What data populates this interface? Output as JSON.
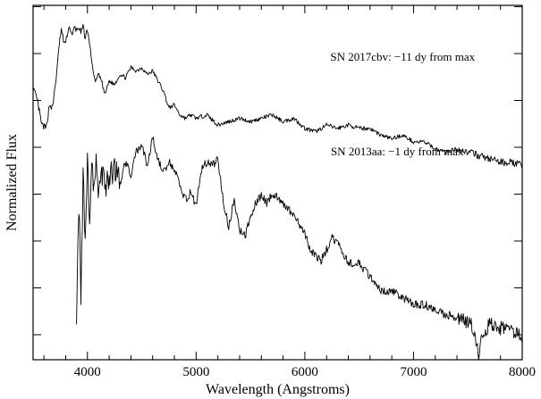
{
  "chart_data": {
    "type": "line",
    "title": "",
    "xlabel": "Wavelength (Angstroms)",
    "ylabel": "Normalized Flux",
    "xlim": [
      3500,
      8000
    ],
    "ylim": [
      0,
      1
    ],
    "x_ticks": [
      4000,
      5000,
      6000,
      7000,
      8000
    ],
    "x_tick_labels": [
      "4000",
      "5000",
      "6000",
      "7000",
      "8000"
    ],
    "y_ticks_unlabeled": true,
    "grid": false,
    "legend": "none",
    "line_color": "#000000",
    "annotations": [
      {
        "text": "SN 2017cbv: −11 dy from max",
        "x": 6900,
        "y": 0.86
      },
      {
        "text": "SN 2013aa: −1 dy from max",
        "x": 6850,
        "y": 0.58
      }
    ],
    "series": [
      {
        "name": "SN 2017cbv: −11 dy from max",
        "x": [
          3500,
          3540,
          3580,
          3620,
          3650,
          3680,
          3700,
          3720,
          3740,
          3760,
          3780,
          3800,
          3820,
          3840,
          3860,
          3880,
          3900,
          3920,
          3940,
          3960,
          3980,
          4000,
          4020,
          4040,
          4060,
          4080,
          4100,
          4130,
          4160,
          4200,
          4250,
          4300,
          4350,
          4400,
          4450,
          4500,
          4550,
          4600,
          4650,
          4700,
          4750,
          4800,
          4850,
          4900,
          4950,
          5000,
          5100,
          5200,
          5300,
          5400,
          5500,
          5600,
          5700,
          5800,
          5900,
          6000,
          6100,
          6200,
          6300,
          6400,
          6500,
          6600,
          6700,
          6800,
          6900,
          7000,
          7100,
          7200,
          7300,
          7400,
          7500,
          7600,
          7700,
          7800,
          7900,
          8000
        ],
        "y": [
          0.78,
          0.74,
          0.67,
          0.66,
          0.73,
          0.72,
          0.78,
          0.83,
          0.91,
          0.95,
          0.92,
          0.91,
          0.95,
          0.96,
          0.93,
          0.96,
          0.95,
          0.96,
          0.94,
          0.96,
          0.93,
          0.95,
          0.91,
          0.86,
          0.81,
          0.8,
          0.82,
          0.8,
          0.76,
          0.8,
          0.79,
          0.82,
          0.81,
          0.84,
          0.83,
          0.84,
          0.82,
          0.83,
          0.8,
          0.77,
          0.72,
          0.73,
          0.7,
          0.69,
          0.7,
          0.69,
          0.7,
          0.67,
          0.68,
          0.69,
          0.68,
          0.69,
          0.7,
          0.68,
          0.69,
          0.66,
          0.65,
          0.67,
          0.66,
          0.67,
          0.66,
          0.66,
          0.64,
          0.63,
          0.64,
          0.62,
          0.62,
          0.6,
          0.59,
          0.6,
          0.59,
          0.58,
          0.57,
          0.56,
          0.56,
          0.55
        ]
      },
      {
        "name": "SN 2013aa: −1 dy from max",
        "x": [
          3900,
          3920,
          3940,
          3960,
          3980,
          4000,
          4020,
          4040,
          4060,
          4080,
          4100,
          4130,
          4160,
          4200,
          4250,
          4300,
          4350,
          4400,
          4450,
          4500,
          4550,
          4600,
          4650,
          4700,
          4750,
          4800,
          4850,
          4900,
          4950,
          5000,
          5050,
          5100,
          5150,
          5200,
          5250,
          5300,
          5350,
          5400,
          5450,
          5500,
          5550,
          5600,
          5650,
          5700,
          5800,
          5900,
          6000,
          6050,
          6100,
          6150,
          6200,
          6250,
          6300,
          6400,
          6500,
          6600,
          6700,
          6800,
          6900,
          7000,
          7100,
          7200,
          7300,
          7400,
          7500,
          7550,
          7600,
          7650,
          7700,
          7800,
          7900,
          8000
        ],
        "y": [
          0.12,
          0.45,
          0.17,
          0.5,
          0.36,
          0.58,
          0.4,
          0.56,
          0.47,
          0.55,
          0.44,
          0.54,
          0.48,
          0.52,
          0.55,
          0.5,
          0.56,
          0.52,
          0.59,
          0.61,
          0.55,
          0.63,
          0.57,
          0.53,
          0.56,
          0.54,
          0.49,
          0.45,
          0.47,
          0.43,
          0.54,
          0.56,
          0.55,
          0.57,
          0.44,
          0.37,
          0.45,
          0.36,
          0.34,
          0.4,
          0.44,
          0.46,
          0.44,
          0.47,
          0.44,
          0.4,
          0.35,
          0.3,
          0.28,
          0.27,
          0.3,
          0.34,
          0.32,
          0.26,
          0.26,
          0.22,
          0.18,
          0.18,
          0.16,
          0.14,
          0.14,
          0.12,
          0.11,
          0.1,
          0.09,
          0.07,
          0.0,
          0.06,
          0.08,
          0.07,
          0.06,
          0.05
        ]
      }
    ]
  }
}
